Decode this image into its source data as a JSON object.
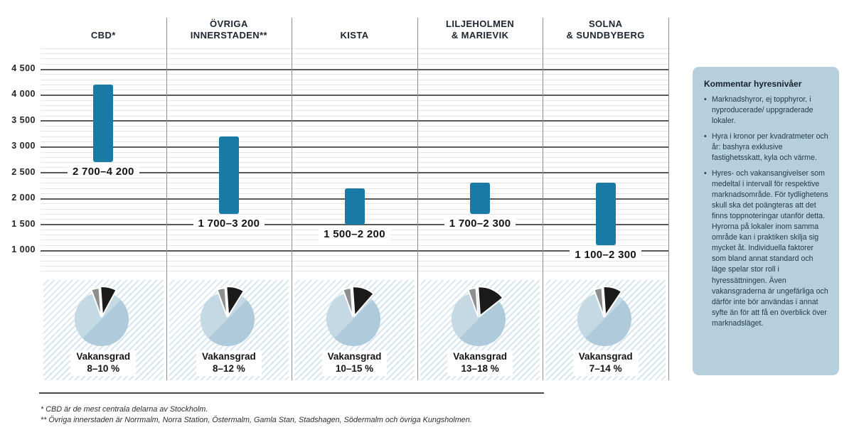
{
  "colors": {
    "bar": "#187AA5",
    "pie_base": "#AECADB",
    "pie_light": "#C5D9E5",
    "pie_slice": "#1A1A1A",
    "pie_slice_secondary": "#8E8E8E",
    "hatch_stripe": "#D8E6EE",
    "panel_bg": "#B6CFDD",
    "grid_major": "#595959",
    "grid_minor": "#E4E4E4",
    "separator": "#8F8F8F",
    "text_dark": "#1B2631"
  },
  "chart_data": {
    "type": "bar",
    "subtype": "floating range bars (market rent levels) with vacancy-rate pie insets per district",
    "title": "",
    "xlabel": "",
    "ylabel": "",
    "ylim": [
      500,
      4900
    ],
    "grid": true,
    "yticks": [
      {
        "value": 4500,
        "label": "4 500"
      },
      {
        "value": 4000,
        "label": "4 000"
      },
      {
        "value": 3500,
        "label": "3 500"
      },
      {
        "value": 3000,
        "label": "3 000"
      },
      {
        "value": 2500,
        "label": "2 500"
      },
      {
        "value": 2000,
        "label": "2 000"
      },
      {
        "value": 1500,
        "label": "1 500"
      },
      {
        "value": 1000,
        "label": "1 000"
      }
    ],
    "categories": [
      "CBD*",
      "ÖVRIGA INNERSTADEN**",
      "KISTA",
      "LILJEHOLMEN & MARIEVIK",
      "SOLNA & SUNDBYBERG"
    ],
    "columns": [
      {
        "header_lines": [
          "CBD*"
        ],
        "rent_min": 2700,
        "rent_max": 4200,
        "rent_label": "2 700–4 200",
        "vacancy_title": "Vakansgrad",
        "vacancy_range_label": "8–10 %",
        "vacancy_min_pct": 8,
        "vacancy_max_pct": 10
      },
      {
        "header_lines": [
          "ÖVRIGA",
          "INNERSTADEN**"
        ],
        "rent_min": 1700,
        "rent_max": 3200,
        "rent_label": "1 700–3 200",
        "vacancy_title": "Vakansgrad",
        "vacancy_range_label": "8–12 %",
        "vacancy_min_pct": 8,
        "vacancy_max_pct": 12
      },
      {
        "header_lines": [
          "KISTA"
        ],
        "rent_min": 1500,
        "rent_max": 2200,
        "rent_label": "1 500–2 200",
        "vacancy_title": "Vakansgrad",
        "vacancy_range_label": "10–15 %",
        "vacancy_min_pct": 10,
        "vacancy_max_pct": 15
      },
      {
        "header_lines": [
          "LILJEHOLMEN",
          "& MARIEVIK"
        ],
        "rent_min": 1700,
        "rent_max": 2300,
        "rent_label": "1 700–2 300",
        "vacancy_title": "Vakansgrad",
        "vacancy_range_label": "13–18 %",
        "vacancy_min_pct": 13,
        "vacancy_max_pct": 18
      },
      {
        "header_lines": [
          "SOLNA",
          "& SUNDBYBERG"
        ],
        "rent_min": 1100,
        "rent_max": 2300,
        "rent_label": "1 100–2 300",
        "vacancy_title": "Vakansgrad",
        "vacancy_range_label": "7–14 %",
        "vacancy_min_pct": 7,
        "vacancy_max_pct": 14
      }
    ]
  },
  "comment_panel": {
    "title": "Kommentar hyresnivåer",
    "bullets": [
      "Marknadshyror, ej topphyror, i nyproducerade/ uppgraderade lokaler.",
      "Hyra i kronor per kvadratmeter och år: bashyra exklusive fastighetsskatt, kyla och värme.",
      "Hyres- och vakansangivelser som medeltal i intervall för respektive marknadsområde. För tydlighetens skull ska det poängteras att det finns toppnoteringar utanför detta. Hyrorna på lokaler inom samma område kan i praktiken skilja sig mycket åt. Individuella faktorer som bland annat standard och läge spelar stor roll i hyressättningen. Även vakansgraderna är ungefärliga och därför inte bör användas i annat syfte än för att få en överblick över marknadsläget."
    ]
  },
  "footnotes": [
    "* CBD är de mest centrala delarna av Stockholm.",
    "** Övriga innerstaden är Norrmalm, Norra Station, Östermalm, Gamla Stan, Stadshagen, Södermalm och övriga Kungsholmen."
  ]
}
